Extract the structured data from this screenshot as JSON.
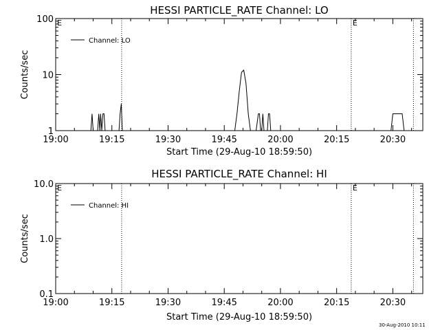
{
  "footer": {
    "timestamp": "30-Aug-2010 10:11"
  },
  "chart_data": [
    {
      "type": "line",
      "title": "HESSI PARTICLE_RATE Channel: LO",
      "xlabel": "Start Time (29-Aug-10 18:59:50)",
      "ylabel": "Counts/sec",
      "yscale": "log",
      "ylim": [
        1,
        100
      ],
      "yticks": [
        1,
        10,
        100
      ],
      "ytick_labels": [
        "1",
        "10",
        "100"
      ],
      "xlim": [
        "19:00",
        "20:38"
      ],
      "xtick_labels": [
        "19:00",
        "19:15",
        "19:30",
        "19:45",
        "20:00",
        "20:15",
        "20:30"
      ],
      "grid": false,
      "legend": "top-left",
      "event_lines": [
        {
          "x": "19:17.6",
          "label": ""
        },
        {
          "x": "20:18.9",
          "label": "E"
        },
        {
          "x": "20:35.5",
          "label": ""
        }
      ],
      "axis_marker": "E",
      "series": [
        {
          "name": "Channel: LO",
          "x": [
            "19:00.0",
            "19:09.4",
            "19:09.7",
            "19:10.0",
            "19:11.2",
            "19:11.5",
            "19:11.8",
            "19:12.0",
            "19:12.3",
            "19:12.6",
            "19:12.9",
            "19:13.2",
            "19:13.5",
            "19:16.9",
            "19:17.2",
            "19:17.5",
            "19:17.8",
            "19:47.8",
            "19:48.4",
            "19:49.0",
            "19:49.6",
            "19:50.2",
            "19:50.8",
            "19:51.4",
            "19:52.0",
            "19:53.5",
            "19:54.1",
            "19:54.4",
            "19:54.7",
            "19:55.0",
            "19:55.3",
            "19:55.6",
            "19:56.5",
            "19:56.8",
            "19:57.1",
            "19:57.4",
            "19:57.7",
            "20:29.5",
            "20:30.0",
            "20:31.0",
            "20:32.5",
            "20:33.0",
            "20:38.0"
          ],
          "y": [
            1,
            1,
            2,
            1,
            1,
            2,
            1,
            2,
            1,
            2,
            2,
            1,
            1,
            1,
            2,
            3,
            1,
            1,
            2,
            5,
            11,
            12,
            7,
            2,
            1,
            1,
            2,
            2,
            1,
            1,
            2,
            1,
            1,
            2,
            2,
            1,
            1,
            1,
            2,
            2,
            2,
            1,
            1
          ]
        }
      ]
    },
    {
      "type": "line",
      "title": "HESSI PARTICLE_RATE Channel: HI",
      "xlabel": "Start Time (29-Aug-10 18:59:50)",
      "ylabel": "Counts/sec",
      "yscale": "log",
      "ylim": [
        0.1,
        10
      ],
      "yticks": [
        0.1,
        1,
        10
      ],
      "ytick_labels": [
        "0.1",
        "1.0",
        "10.0"
      ],
      "xlim": [
        "19:00",
        "20:38"
      ],
      "xtick_labels": [
        "19:00",
        "19:15",
        "19:30",
        "19:45",
        "20:00",
        "20:15",
        "20:30"
      ],
      "grid": false,
      "legend": "top-left",
      "event_lines": [
        {
          "x": "19:17.6",
          "label": ""
        },
        {
          "x": "20:18.9",
          "label": "E"
        },
        {
          "x": "20:35.5",
          "label": ""
        }
      ],
      "axis_marker": "E",
      "series": [
        {
          "name": "Channel: HI",
          "x": [],
          "y": []
        }
      ]
    }
  ]
}
